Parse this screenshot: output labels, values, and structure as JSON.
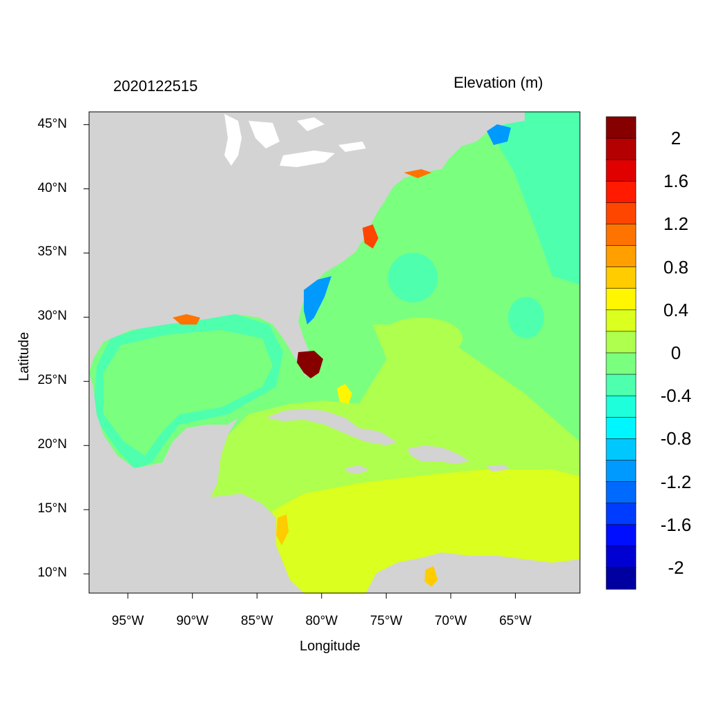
{
  "header": {
    "timestamp": "2020122515",
    "variable": "Elevation (m)"
  },
  "axes": {
    "xlabel": "Longitude",
    "ylabel": "Latitude",
    "xticks": [
      {
        "lon": -95,
        "label": "95°W"
      },
      {
        "lon": -90,
        "label": "90°W"
      },
      {
        "lon": -85,
        "label": "85°W"
      },
      {
        "lon": -80,
        "label": "80°W"
      },
      {
        "lon": -75,
        "label": "75°W"
      },
      {
        "lon": -70,
        "label": "70°W"
      },
      {
        "lon": -65,
        "label": "65°W"
      }
    ],
    "yticks": [
      {
        "lat": 45,
        "label": "45°N"
      },
      {
        "lat": 40,
        "label": "40°N"
      },
      {
        "lat": 35,
        "label": "35°N"
      },
      {
        "lat": 30,
        "label": "30°N"
      },
      {
        "lat": 25,
        "label": "25°N"
      },
      {
        "lat": 20,
        "label": "20°N"
      },
      {
        "lat": 15,
        "label": "15°N"
      },
      {
        "lat": 10,
        "label": "10°N"
      }
    ],
    "lon_range": [
      -98,
      -60
    ],
    "lat_range": [
      8.5,
      46
    ]
  },
  "colorbar": {
    "labels": [
      "2",
      "1.6",
      "1.2",
      "0.8",
      "0.4",
      "0",
      "-0.4",
      "-0.8",
      "-1.2",
      "-1.6",
      "-2"
    ],
    "colors": [
      "#870000",
      "#b40000",
      "#e10000",
      "#ff1a00",
      "#ff4600",
      "#ff7400",
      "#ff9f00",
      "#ffcc00",
      "#fff600",
      "#dbff1e",
      "#aeff4e",
      "#7bff7f",
      "#4effae",
      "#1effdb",
      "#00f6ff",
      "#00c8ff",
      "#009aff",
      "#006aff",
      "#003cff",
      "#000eff",
      "#0000d2",
      "#0000a0"
    ]
  },
  "colors": {
    "land": "#d3d3d3",
    "lakes": "#ffffff",
    "ocean_zero": "#7bff7f",
    "ocean_neg": "#4effae",
    "caribbean": "#aeff4e",
    "south_caribbean": "#dbff1e"
  }
}
